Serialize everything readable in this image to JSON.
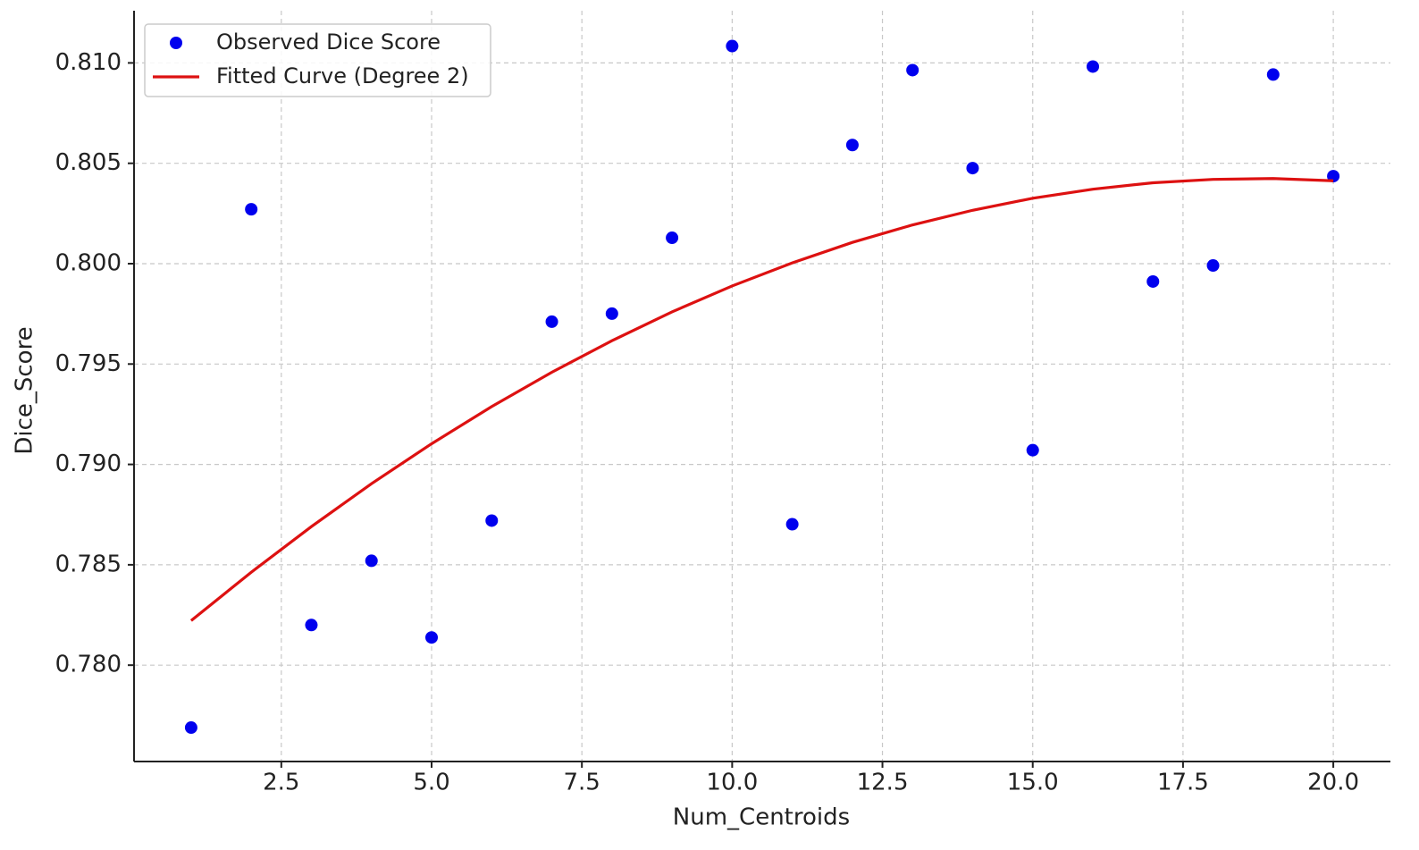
{
  "chart_data": {
    "type": "scatter",
    "x_label": "Num_Centroids",
    "y_label": "Dice_Score",
    "x": [
      1,
      2,
      3,
      4,
      5,
      6,
      7,
      8,
      9,
      10,
      11,
      12,
      13,
      14,
      15,
      16,
      17,
      18,
      19,
      20
    ],
    "series": [
      {
        "name": "Observed Dice Score",
        "color": "#0000ee",
        "style": "marker",
        "values": [
          0.77689,
          0.80271,
          0.782,
          0.7852,
          0.78138,
          0.7872,
          0.79711,
          0.79751,
          0.80129,
          0.81084,
          0.78702,
          0.80591,
          0.80964,
          0.80476,
          0.79071,
          0.80982,
          0.79911,
          0.79991,
          0.80942,
          0.80436
        ]
      },
      {
        "name": "Fitted Curve (Degree 2)",
        "color": "#dd1111",
        "style": "line",
        "values": [
          0.78222,
          0.78463,
          0.7869,
          0.78904,
          0.79103,
          0.79288,
          0.79459,
          0.79616,
          0.7976,
          0.79889,
          0.80004,
          0.80106,
          0.80193,
          0.80266,
          0.80326,
          0.80371,
          0.80403,
          0.8042,
          0.80424,
          0.80413
        ]
      }
    ],
    "xlim": [
      0.05,
      20.95
    ],
    "ylim": [
      0.7752,
      0.8126
    ],
    "xticks": [
      2.5,
      {
        "value": 5,
        "label": "5.0"
      },
      7.5,
      {
        "value": 10,
        "label": "10.0"
      },
      12.5,
      {
        "value": 15,
        "label": "15.0"
      },
      17.5,
      {
        "value": 20,
        "label": "20.0"
      }
    ],
    "yticks": [
      {
        "value": 0.78,
        "label": "0.780"
      },
      0.785,
      {
        "value": 0.79,
        "label": "0.790"
      },
      0.795,
      {
        "value": 0.8,
        "label": "0.800"
      },
      0.805,
      {
        "value": 0.81,
        "label": "0.810"
      }
    ],
    "grid": true,
    "legend": "upper left"
  }
}
